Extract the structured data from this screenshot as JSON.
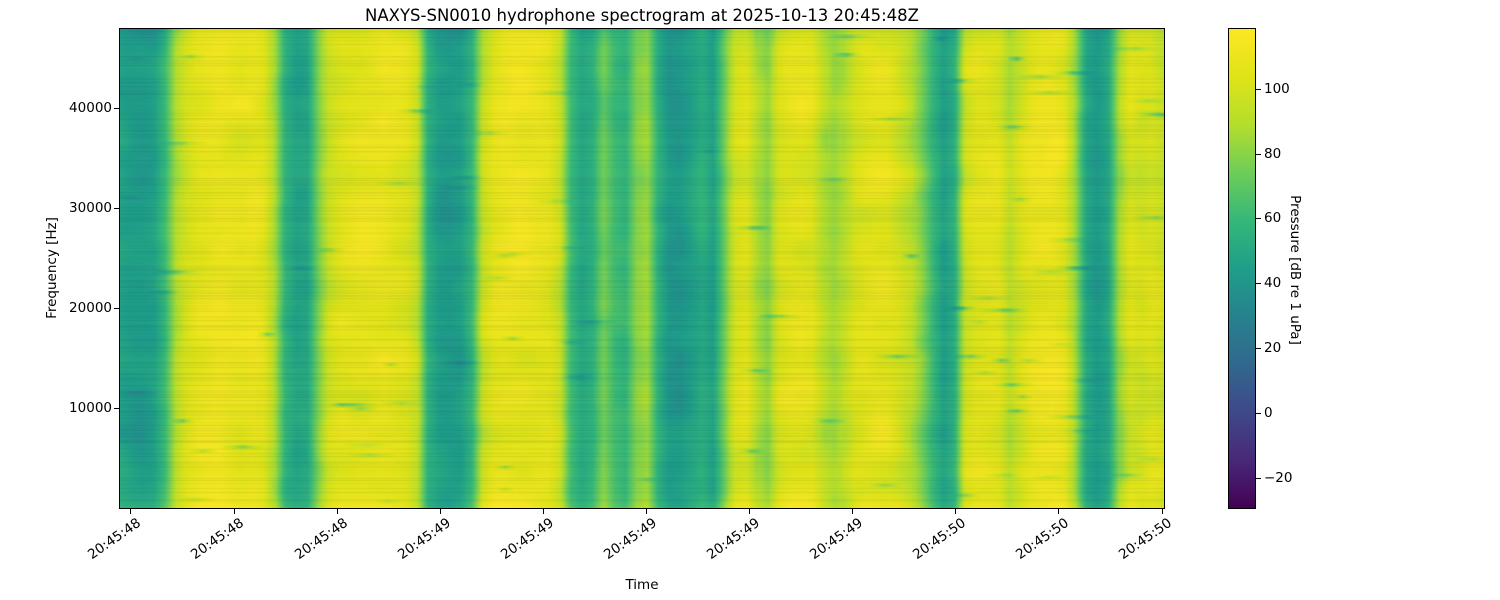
{
  "figure": {
    "title": "NAXYS-SN0010 hydrophone spectrogram at 2025-10-13 20:45:48Z",
    "xlabel": "Time",
    "ylabel": "Frequency [Hz]",
    "colorbar_label": "Pressure [dB re 1 uPa]"
  },
  "chart_data": {
    "type": "heatmap",
    "subtype": "spectrogram",
    "title": "NAXYS-SN0010 hydrophone spectrogram at 2025-10-13 20:45:48Z",
    "xlabel": "Time",
    "ylabel": "Frequency [Hz]",
    "x_tick_labels": [
      "20:45:48",
      "20:45:48",
      "20:45:48",
      "20:45:49",
      "20:45:49",
      "20:45:49",
      "20:45:49",
      "20:45:49",
      "20:45:50",
      "20:45:50",
      "20:45:50"
    ],
    "y_tick_values": [
      10000,
      20000,
      30000,
      40000
    ],
    "y_tick_labels": [
      "10000",
      "20000",
      "30000",
      "40000"
    ],
    "ylim": [
      0,
      48000
    ],
    "grid": false,
    "colormap": "viridis",
    "colorbar": {
      "label": "Pressure [dB re 1 uPa]",
      "vmin": -29,
      "vmax": 118.5,
      "tick_values": [
        100,
        80,
        60,
        40,
        20,
        0,
        -20
      ],
      "tick_labels": [
        "100",
        "80",
        "60",
        "40",
        "20",
        "0",
        "−20"
      ]
    },
    "viridis_stops": [
      [
        0.0,
        "#440154"
      ],
      [
        0.1,
        "#482878"
      ],
      [
        0.2,
        "#3e4989"
      ],
      [
        0.3,
        "#31688e"
      ],
      [
        0.4,
        "#26828e"
      ],
      [
        0.5,
        "#1f9e89"
      ],
      [
        0.6,
        "#35b779"
      ],
      [
        0.7,
        "#6dcd59"
      ],
      [
        0.8,
        "#b4de2c"
      ],
      [
        0.9,
        "#dfe318"
      ],
      [
        1.0,
        "#fde725"
      ]
    ],
    "time_profile_db": [
      48,
      45,
      44,
      46,
      60,
      88,
      100,
      106,
      108,
      110,
      108,
      107,
      109,
      106,
      88,
      56,
      48,
      50,
      78,
      100,
      106,
      107,
      108,
      109,
      110,
      108,
      106,
      96,
      55,
      45,
      43,
      45,
      58,
      95,
      106,
      109,
      110,
      109,
      108,
      106,
      96,
      62,
      50,
      55,
      75,
      62,
      58,
      80,
      85,
      55,
      42,
      42,
      48,
      55,
      48,
      75,
      102,
      105,
      88,
      80,
      102,
      107,
      108,
      106,
      92,
      84,
      90,
      102,
      106,
      107,
      106,
      100,
      92,
      78,
      60,
      46,
      55,
      100,
      106,
      106,
      104,
      90,
      100,
      107,
      109,
      110,
      106,
      85,
      50,
      43,
      50,
      85,
      103,
      100,
      103,
      98
    ],
    "texture": {
      "seed": 20251013,
      "blob_amp_db": 6.5,
      "blob_amp2_db": 3.2,
      "dash_count": 120,
      "dash_depth_db": [
        15,
        30
      ],
      "striation_alpha": 0.09,
      "bottom_boost_db": 7,
      "top_darken_db": 5
    }
  }
}
